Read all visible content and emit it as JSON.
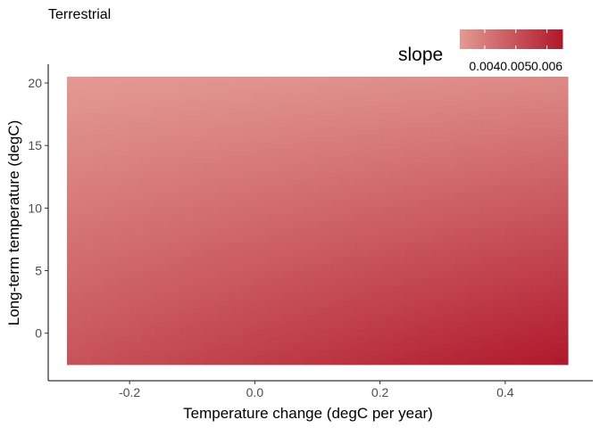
{
  "chart_data": {
    "type": "heatmap",
    "title": "Terrestrial",
    "xlabel": "Temperature change (degC per year)",
    "ylabel": "Long-term temperature (degC)",
    "x_range": [
      -0.3,
      0.5
    ],
    "y_range": [
      -2.5,
      20.5
    ],
    "xlim": [
      -0.33,
      0.54
    ],
    "ylim": [
      -3.8,
      21.5
    ],
    "x_ticks": [
      -0.2,
      0.0,
      0.2,
      0.4
    ],
    "x_tick_labels": [
      "-0.2",
      "0.0",
      "0.2",
      "0.4"
    ],
    "y_ticks": [
      0,
      5,
      10,
      15,
      20
    ],
    "y_tick_labels": [
      "0",
      "5",
      "10",
      "15",
      "20"
    ],
    "z_corners": {
      "top_left": 0.0032,
      "top_right": 0.0036,
      "bottom_left": 0.005,
      "bottom_right": 0.0065
    },
    "legend": {
      "title": "slope",
      "position": "top-right",
      "range": [
        0.0032,
        0.0065
      ],
      "ticks": [
        0.004,
        0.005,
        0.006
      ],
      "tick_labels": [
        "0.004",
        "0.005",
        "0.006"
      ],
      "low_color": "#e39a92",
      "high_color": "#b0182c"
    },
    "grid": false
  }
}
